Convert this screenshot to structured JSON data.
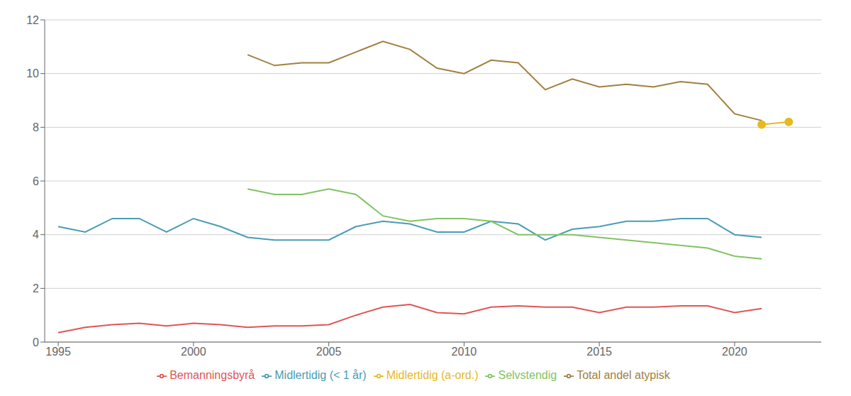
{
  "chart_data": {
    "type": "line",
    "x": [
      1995,
      1996,
      1997,
      1998,
      1999,
      2000,
      2001,
      2002,
      2003,
      2004,
      2005,
      2006,
      2007,
      2008,
      2009,
      2010,
      2011,
      2012,
      2013,
      2014,
      2015,
      2016,
      2017,
      2018,
      2019,
      2020,
      2021,
      2022
    ],
    "series": [
      {
        "name": "Midlertidig (< 1 år)",
        "color": "#4a9cb5",
        "marker": "none",
        "values": [
          4.3,
          4.1,
          4.6,
          4.6,
          4.1,
          4.6,
          4.3,
          3.9,
          3.8,
          3.8,
          3.8,
          4.3,
          4.5,
          4.4,
          4.1,
          4.1,
          4.5,
          4.4,
          3.8,
          4.2,
          4.3,
          4.5,
          4.5,
          4.6,
          4.6,
          4.0,
          3.9,
          null
        ]
      },
      {
        "name": "Bemanningsbyrå",
        "color": "#e05555",
        "marker": "none",
        "values": [
          0.35,
          0.55,
          0.65,
          0.7,
          0.6,
          0.7,
          0.65,
          0.55,
          0.6,
          0.6,
          0.65,
          1.0,
          1.3,
          1.4,
          1.1,
          1.05,
          1.3,
          1.35,
          1.3,
          1.3,
          1.1,
          1.3,
          1.3,
          1.35,
          1.35,
          1.1,
          1.25,
          null
        ]
      },
      {
        "name": "Selvstendig",
        "color": "#82c365",
        "marker": "none",
        "values": [
          null,
          null,
          null,
          null,
          null,
          null,
          null,
          5.7,
          5.5,
          5.5,
          5.7,
          5.5,
          4.7,
          4.5,
          4.6,
          4.6,
          4.5,
          4.0,
          4.0,
          4.0,
          3.9,
          3.8,
          3.7,
          3.6,
          3.5,
          3.2,
          3.1,
          null
        ]
      },
      {
        "name": "Midlertidig (a-ord.)",
        "color": "#e8b820",
        "marker": "circle",
        "values": [
          null,
          null,
          null,
          null,
          null,
          null,
          null,
          null,
          null,
          null,
          null,
          null,
          null,
          null,
          null,
          null,
          null,
          null,
          null,
          null,
          null,
          null,
          null,
          null,
          null,
          null,
          8.1,
          8.2
        ]
      },
      {
        "name": "Total andel atypisk",
        "color": "#a08040",
        "marker": "none",
        "values": [
          null,
          null,
          null,
          null,
          null,
          null,
          null,
          10.7,
          10.3,
          10.4,
          10.4,
          10.8,
          11.2,
          10.9,
          10.2,
          10.0,
          10.5,
          10.4,
          9.4,
          9.8,
          9.5,
          9.6,
          9.5,
          9.7,
          9.6,
          8.5,
          8.25,
          null
        ]
      }
    ],
    "xlim": [
      1994.5,
      2023.2
    ],
    "xticks": [
      1995,
      2000,
      2005,
      2010,
      2015,
      2020
    ],
    "ylim": [
      0,
      12
    ],
    "yticks": [
      0,
      2,
      4,
      6,
      8,
      10,
      12
    ],
    "grid": true,
    "legend": "bottom"
  }
}
